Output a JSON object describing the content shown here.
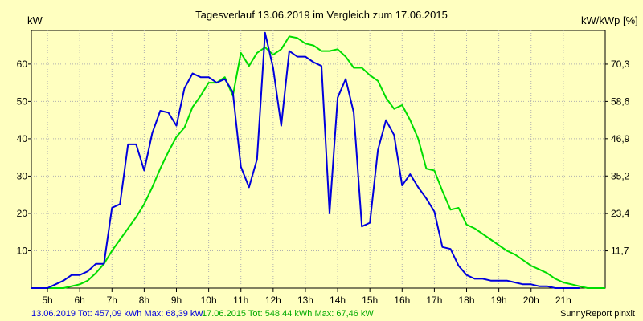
{
  "chart_data": {
    "type": "line",
    "title": "Tagesverlauf 13.06.2019 im Vergleich zum 17.06.2015",
    "ylabel_left": "kW",
    "ylabel_right": "kW/kWp [%]",
    "xlim": [
      4.5,
      22.3
    ],
    "ylim": [
      0,
      69
    ],
    "grid": true,
    "x_ticks": [
      5,
      6,
      7,
      8,
      9,
      10,
      11,
      12,
      13,
      14,
      15,
      16,
      17,
      18,
      19,
      20,
      21
    ],
    "x_tick_labels": [
      "5h",
      "6h",
      "7h",
      "8h",
      "9h",
      "10h",
      "11h",
      "12h",
      "13h",
      "14h",
      "15h",
      "16h",
      "17h",
      "18h",
      "19h",
      "20h",
      "21h"
    ],
    "y_ticks_left": [
      10,
      20,
      30,
      40,
      50,
      60
    ],
    "y_tick_labels_left": [
      "10",
      "20",
      "30",
      "40",
      "50",
      "60"
    ],
    "y_ticks_right": [
      11.7,
      23.4,
      35.2,
      46.9,
      58.6,
      70.3
    ],
    "y_tick_labels_right": [
      "11,7",
      "23,4",
      "35,2",
      "46,9",
      "58,6",
      "70,3"
    ],
    "right_axis_scale_percent_per_kw": 1.172,
    "series": [
      {
        "color": "#0000DD",
        "x": [
          4.5,
          5.0,
          5.25,
          5.5,
          5.75,
          6.0,
          6.25,
          6.5,
          6.75,
          7.0,
          7.25,
          7.5,
          7.75,
          8.0,
          8.25,
          8.5,
          8.75,
          9.0,
          9.25,
          9.5,
          9.75,
          10.0,
          10.25,
          10.5,
          10.75,
          11.0,
          11.25,
          11.5,
          11.75,
          12.0,
          12.25,
          12.5,
          12.75,
          13.0,
          13.25,
          13.5,
          13.75,
          14.0,
          14.25,
          14.5,
          14.75,
          15.0,
          15.25,
          15.5,
          15.75,
          16.0,
          16.25,
          16.5,
          16.75,
          17.0,
          17.25,
          17.5,
          17.75,
          18.0,
          18.25,
          18.5,
          18.75,
          19.0,
          19.25,
          19.5,
          19.75,
          20.0,
          20.25,
          20.5,
          20.75,
          21.0,
          21.25,
          21.5
        ],
        "y": [
          0,
          0,
          1,
          2,
          3.5,
          3.5,
          4.5,
          6.5,
          6.5,
          21.5,
          22.5,
          38.5,
          38.5,
          31.5,
          41.5,
          47.5,
          47,
          43.5,
          53.5,
          57.5,
          56.5,
          56.5,
          55,
          56,
          52.5,
          32.5,
          27,
          34.5,
          68.4,
          59,
          43.5,
          63.5,
          62,
          62,
          60.5,
          59.5,
          20,
          51,
          56,
          47,
          16.5,
          17.5,
          37,
          45,
          41,
          27.5,
          30.5,
          27,
          24,
          20.5,
          11,
          10.5,
          6,
          3.5,
          2.5,
          2.5,
          2,
          2,
          2,
          1.5,
          1,
          1,
          0.5,
          0.5,
          0,
          0,
          0,
          0
        ]
      },
      {
        "color": "#00DD00",
        "x": [
          4.5,
          5.0,
          5.5,
          6.0,
          6.25,
          6.5,
          6.75,
          7.0,
          7.25,
          7.5,
          7.75,
          8.0,
          8.25,
          8.5,
          8.75,
          9.0,
          9.25,
          9.5,
          9.75,
          10.0,
          10.25,
          10.5,
          10.75,
          11.0,
          11.25,
          11.5,
          11.75,
          12.0,
          12.25,
          12.5,
          12.75,
          13.0,
          13.25,
          13.5,
          13.75,
          14.0,
          14.25,
          14.5,
          14.75,
          15.0,
          15.25,
          15.5,
          15.75,
          16.0,
          16.25,
          16.5,
          16.75,
          17.0,
          17.25,
          17.5,
          17.75,
          18.0,
          18.25,
          18.5,
          18.75,
          19.0,
          19.25,
          19.5,
          19.75,
          20.0,
          20.25,
          20.5,
          20.75,
          21.0,
          21.25,
          21.5,
          21.75,
          22.3
        ],
        "y": [
          0,
          0,
          0,
          1,
          2,
          4,
          6.5,
          10,
          13,
          16,
          19,
          22.5,
          27,
          32,
          36.5,
          40.5,
          43,
          48.5,
          51.5,
          55,
          55,
          56.5,
          51.5,
          63,
          59.5,
          63,
          64.5,
          62.5,
          64,
          67.4,
          67,
          65.5,
          65,
          63.5,
          63.5,
          64,
          62,
          59,
          59,
          57,
          55.5,
          51,
          48,
          49,
          45,
          40,
          32,
          31.5,
          26,
          21,
          21.5,
          17,
          16,
          14.5,
          13,
          11.5,
          10,
          9,
          7.5,
          6,
          5,
          4,
          2.5,
          1.5,
          1,
          0.5,
          0,
          0
        ]
      }
    ],
    "footer": {
      "series1_summary": "13.06.2019 Tot: 457,09 kWh Max: 68,39 kW",
      "series2_summary": "17.06.2015 Tot: 548,44 kWh Max: 67,46 kW",
      "credit": "SunnyReport pinxit"
    }
  }
}
